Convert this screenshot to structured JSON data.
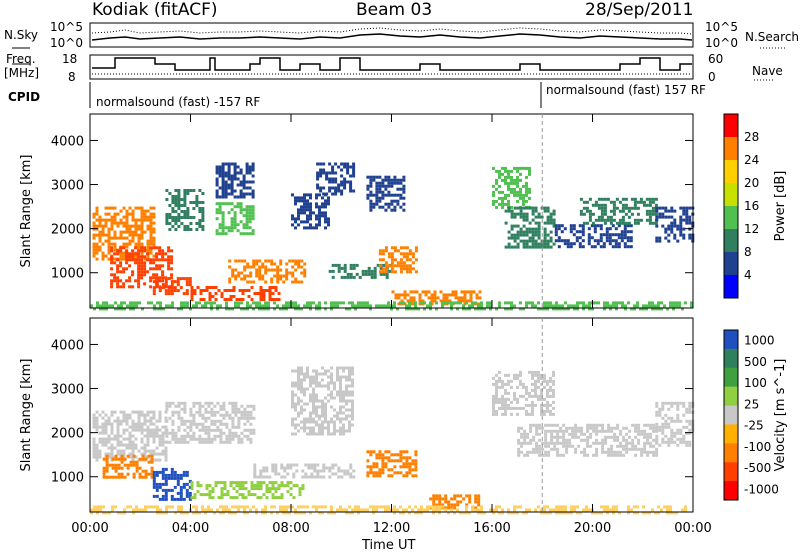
{
  "header": {
    "station": "Kodiak (fitACF)",
    "beam": "Beam 03",
    "date": "28/Sep/2011"
  },
  "noise_panel": {
    "left_label": "N.Sky",
    "right_label": "N.Search",
    "left_ticks": [
      "10^5",
      "10^0"
    ],
    "right_ticks": [
      "10^5",
      "10^0"
    ]
  },
  "freq_panel": {
    "left_label_1": "Freq.",
    "left_label_2": "[MHz]",
    "right_label": "Nave",
    "left_ticks": [
      "18",
      "8"
    ],
    "right_ticks": [
      "60",
      "0"
    ]
  },
  "cpid": {
    "label": "CPID",
    "segments": [
      {
        "start_hour": 0.0,
        "end_hour": 18.0,
        "label": "normalsound (fast) -157 RF"
      },
      {
        "start_hour": 18.0,
        "end_hour": 24.0,
        "label": "normalsound (fast) 157 RF"
      }
    ]
  },
  "chart_data": [
    {
      "type": "heatmap",
      "parameter": "Power",
      "ylabel": "Slant Range [km]",
      "xlabel": "Time UT",
      "xlim": [
        0,
        24
      ],
      "ylim": [
        200,
        4600
      ],
      "x_ticks": [
        "00:00",
        "04:00",
        "08:00",
        "12:00",
        "16:00",
        "20:00",
        "00:00"
      ],
      "y_ticks": [
        1000,
        2000,
        3000,
        4000
      ],
      "colorbar": {
        "label": "Power [dB]",
        "ticks": [
          "28",
          "24",
          "20",
          "16",
          "12",
          "8",
          "4"
        ],
        "colors": [
          "#ff0000",
          "#ff8000",
          "#ffd000",
          "#c8e000",
          "#50c050",
          "#308060",
          "#204090",
          "#0000ff"
        ]
      },
      "regions": [
        {
          "x0": 0.1,
          "x1": 2.5,
          "y0": 1300,
          "y1": 2500,
          "color": "#ff8000"
        },
        {
          "x0": 0.8,
          "x1": 3.2,
          "y0": 700,
          "y1": 1600,
          "color": "#ff4000"
        },
        {
          "x0": 2.5,
          "x1": 4.0,
          "y0": 500,
          "y1": 900,
          "color": "#ff4000"
        },
        {
          "x0": 4.0,
          "x1": 7.5,
          "y0": 400,
          "y1": 700,
          "color": "#ff4000"
        },
        {
          "x0": 3.0,
          "x1": 4.5,
          "y0": 2000,
          "y1": 2900,
          "color": "#308060"
        },
        {
          "x0": 5.0,
          "x1": 6.5,
          "y0": 1900,
          "y1": 2600,
          "color": "#50c050"
        },
        {
          "x0": 5.0,
          "x1": 6.5,
          "y0": 2700,
          "y1": 3500,
          "color": "#204090"
        },
        {
          "x0": 5.5,
          "x1": 8.5,
          "y0": 800,
          "y1": 1300,
          "color": "#ff8000"
        },
        {
          "x0": 8.0,
          "x1": 9.5,
          "y0": 2000,
          "y1": 2800,
          "color": "#204090"
        },
        {
          "x0": 9.0,
          "x1": 10.5,
          "y0": 2800,
          "y1": 3500,
          "color": "#204090"
        },
        {
          "x0": 9.5,
          "x1": 12.0,
          "y0": 900,
          "y1": 1200,
          "color": "#308060"
        },
        {
          "x0": 11.5,
          "x1": 13.0,
          "y0": 1000,
          "y1": 1600,
          "color": "#ff8000"
        },
        {
          "x0": 11.0,
          "x1": 12.5,
          "y0": 2400,
          "y1": 3200,
          "color": "#204090"
        },
        {
          "x0": 12.0,
          "x1": 15.5,
          "y0": 300,
          "y1": 600,
          "color": "#ff8000"
        },
        {
          "x0": 16.0,
          "x1": 17.5,
          "y0": 2500,
          "y1": 3400,
          "color": "#50c050"
        },
        {
          "x0": 16.5,
          "x1": 18.5,
          "y0": 1600,
          "y1": 2500,
          "color": "#308060"
        },
        {
          "x0": 18.5,
          "x1": 21.5,
          "y0": 1600,
          "y1": 2100,
          "color": "#204090"
        },
        {
          "x0": 19.5,
          "x1": 22.5,
          "y0": 2100,
          "y1": 2700,
          "color": "#308060"
        },
        {
          "x0": 22.5,
          "x1": 24.0,
          "y0": 1700,
          "y1": 2500,
          "color": "#204090"
        },
        {
          "x0": 0.0,
          "x1": 24.0,
          "y0": 200,
          "y1": 350,
          "color": "#50c050"
        }
      ]
    },
    {
      "type": "heatmap",
      "parameter": "Velocity",
      "ylabel": "Slant Range [km]",
      "xlabel": "Time UT",
      "xlim": [
        0,
        24
      ],
      "ylim": [
        200,
        4600
      ],
      "x_ticks": [
        "00:00",
        "04:00",
        "08:00",
        "12:00",
        "16:00",
        "20:00",
        "00:00"
      ],
      "y_ticks": [
        1000,
        2000,
        3000,
        4000
      ],
      "colorbar": {
        "label": "Velocity [m s^-1]",
        "ticks": [
          "1000",
          "500",
          "100",
          "25",
          "-25",
          "-100",
          "-500",
          "-1000"
        ],
        "colors": [
          "#2050c0",
          "#308060",
          "#40a040",
          "#90d040",
          "#c8c8c8",
          "#ffb000",
          "#ff8000",
          "#ff4000",
          "#ff0000"
        ]
      },
      "regions": [
        {
          "x0": 0.1,
          "x1": 3.0,
          "y0": 1400,
          "y1": 2500,
          "color": "#c8c8c8"
        },
        {
          "x0": 0.5,
          "x1": 2.5,
          "y0": 1000,
          "y1": 1500,
          "color": "#ff8000"
        },
        {
          "x0": 2.5,
          "x1": 4.0,
          "y0": 500,
          "y1": 1200,
          "color": "#2050c0"
        },
        {
          "x0": 3.0,
          "x1": 6.5,
          "y0": 1800,
          "y1": 2700,
          "color": "#c8c8c8"
        },
        {
          "x0": 4.0,
          "x1": 8.5,
          "y0": 500,
          "y1": 900,
          "color": "#90d040"
        },
        {
          "x0": 6.5,
          "x1": 10.5,
          "y0": 1000,
          "y1": 1300,
          "color": "#c8c8c8"
        },
        {
          "x0": 8.0,
          "x1": 10.5,
          "y0": 2000,
          "y1": 3500,
          "color": "#c8c8c8"
        },
        {
          "x0": 11.0,
          "x1": 13.0,
          "y0": 1000,
          "y1": 1600,
          "color": "#ff8000"
        },
        {
          "x0": 13.5,
          "x1": 15.5,
          "y0": 300,
          "y1": 600,
          "color": "#ff8000"
        },
        {
          "x0": 16.0,
          "x1": 18.5,
          "y0": 2400,
          "y1": 3400,
          "color": "#c8c8c8"
        },
        {
          "x0": 17.0,
          "x1": 22.5,
          "y0": 1500,
          "y1": 2200,
          "color": "#c8c8c8"
        },
        {
          "x0": 22.5,
          "x1": 24.0,
          "y0": 1700,
          "y1": 2700,
          "color": "#c8c8c8"
        },
        {
          "x0": 0.0,
          "x1": 24.0,
          "y0": 200,
          "y1": 350,
          "color": "#ffd060"
        }
      ]
    }
  ]
}
